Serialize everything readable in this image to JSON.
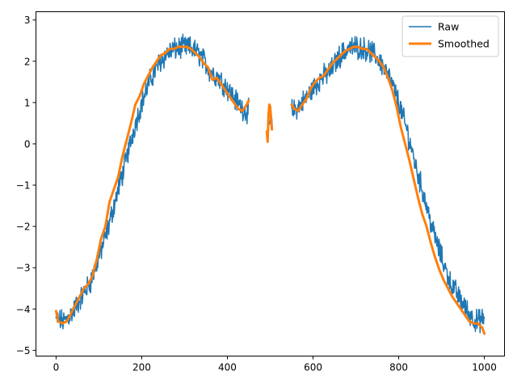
{
  "chart_data": {
    "type": "line",
    "title": "",
    "xlabel": "",
    "ylabel": "",
    "xlim": [
      -47,
      1047
    ],
    "ylim": [
      -5.14,
      3.2
    ],
    "x_ticks": [
      0,
      200,
      400,
      600,
      800,
      1000
    ],
    "y_ticks": [
      -5,
      -4,
      -3,
      -2,
      -1,
      0,
      1,
      2,
      3
    ],
    "x_tick_labels": [
      "0",
      "200",
      "400",
      "600",
      "800",
      "1000"
    ],
    "y_tick_labels": [
      "−5",
      "−4",
      "−3",
      "−2",
      "−1",
      "0",
      "1",
      "2",
      "3"
    ],
    "grid": false,
    "legend_position": "upper right",
    "series": [
      {
        "name": "Raw",
        "color": "#1f77b4",
        "style": "noisy",
        "noise_amplitude": 0.22,
        "segments": [
          {
            "x": [
              0,
              20,
              40,
              60,
              80,
              100,
              120,
              140,
              160,
              180,
              200,
              220,
              240,
              260,
              280,
              300,
              320,
              340,
              360,
              380,
              400,
              420,
              440,
              450
            ],
            "y": [
              -4.25,
              -4.3,
              -4.05,
              -3.7,
              -3.35,
              -2.75,
              -2.1,
              -1.3,
              -0.55,
              0.3,
              1.0,
              1.55,
              1.95,
              2.2,
              2.3,
              2.35,
              2.3,
              2.1,
              1.75,
              1.6,
              1.35,
              1.05,
              0.8,
              0.8
            ]
          },
          {
            "x": [
              495,
              500,
              505
            ],
            "y": [
              0.4,
              0.6,
              0.4
            ]
          },
          {
            "x": [
              550,
              560,
              580,
              600,
              620,
              640,
              660,
              680,
              700,
              720,
              740,
              760,
              780,
              800,
              820,
              840,
              860,
              880,
              900,
              920,
              940,
              960,
              980,
              1000
            ],
            "y": [
              0.8,
              0.85,
              1.05,
              1.35,
              1.6,
              1.75,
              2.1,
              2.3,
              2.35,
              2.3,
              2.2,
              1.95,
              1.55,
              1.0,
              0.3,
              -0.55,
              -1.3,
              -2.1,
              -2.75,
              -3.35,
              -3.7,
              -4.05,
              -4.3,
              -4.25
            ]
          }
        ]
      },
      {
        "name": "Smoothed",
        "color": "#ff7f0e",
        "segments": [
          {
            "x": [
              0,
              5,
              15,
              25,
              35,
              45,
              55,
              65,
              75,
              85,
              95,
              105,
              115,
              125,
              135,
              145,
              155,
              165,
              175,
              185,
              195,
              205,
              215,
              225,
              235,
              245,
              255,
              265,
              275,
              285,
              295,
              305,
              315,
              325,
              335,
              345,
              355,
              365,
              375,
              385,
              395,
              405,
              415,
              425,
              435,
              445,
              450
            ],
            "y": [
              -4.05,
              -4.3,
              -4.35,
              -4.3,
              -4.1,
              -3.9,
              -3.7,
              -3.5,
              -3.4,
              -3.2,
              -2.8,
              -2.3,
              -2.0,
              -1.4,
              -1.1,
              -0.8,
              -0.3,
              0.1,
              0.5,
              0.95,
              1.15,
              1.45,
              1.65,
              1.85,
              2.0,
              2.15,
              2.2,
              2.3,
              2.3,
              2.35,
              2.35,
              2.35,
              2.3,
              2.2,
              2.1,
              1.95,
              1.85,
              1.55,
              1.6,
              1.45,
              1.3,
              1.15,
              1.0,
              0.85,
              0.8,
              0.95,
              1.05
            ]
          },
          {
            "x": [
              492,
              494,
              496,
              498,
              500,
              502,
              504
            ],
            "y": [
              0.3,
              0.05,
              0.7,
              0.95,
              0.9,
              0.6,
              0.35
            ]
          },
          {
            "x": [
              550,
              556,
              565,
              575,
              585,
              595,
              605,
              615,
              625,
              635,
              645,
              655,
              665,
              675,
              685,
              695,
              705,
              715,
              725,
              735,
              745,
              755,
              765,
              775,
              785,
              795,
              805,
              815,
              825,
              835,
              845,
              855,
              865,
              875,
              885,
              895,
              905,
              915,
              925,
              935,
              945,
              955,
              965,
              975,
              985,
              995,
              1000
            ],
            "y": [
              0.95,
              0.85,
              0.8,
              0.95,
              1.1,
              1.35,
              1.5,
              1.6,
              1.65,
              1.8,
              1.95,
              2.05,
              2.15,
              2.25,
              2.3,
              2.35,
              2.35,
              2.3,
              2.3,
              2.2,
              2.1,
              2.0,
              1.85,
              1.6,
              1.3,
              0.9,
              0.4,
              0.0,
              -0.4,
              -0.85,
              -1.3,
              -1.7,
              -2.0,
              -2.4,
              -2.75,
              -3.05,
              -3.3,
              -3.5,
              -3.7,
              -3.85,
              -4.0,
              -4.15,
              -4.3,
              -4.35,
              -4.35,
              -4.45,
              -4.6
            ]
          }
        ]
      }
    ]
  },
  "legend": {
    "items": [
      {
        "label": "Raw",
        "color": "#1f77b4"
      },
      {
        "label": "Smoothed",
        "color": "#ff7f0e"
      }
    ]
  }
}
